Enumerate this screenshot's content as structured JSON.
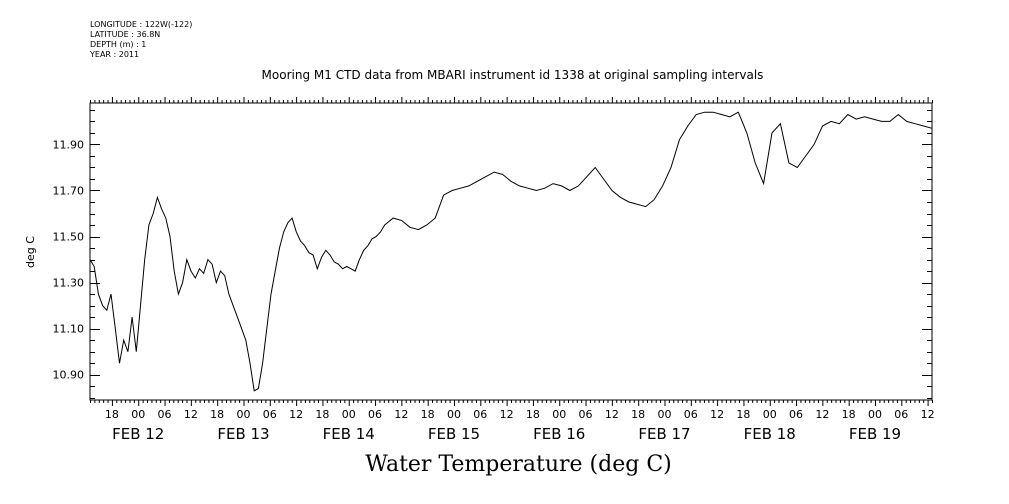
{
  "header": {
    "lines": [
      "LONGITUDE : 122W(-122)",
      "LATITUDE : 36.8N",
      "DEPTH (m) : 1",
      "YEAR : 2011"
    ]
  },
  "chart_data": {
    "type": "line",
    "title": "Mooring M1 CTD data from MBARI instrument id 1338 at original sampling intervals",
    "xlabel": "Water Temperature (deg C)",
    "ylabel": "deg C",
    "xlim": [
      "2011-02-11T13:00",
      "2011-02-19T13:00"
    ],
    "ylim": [
      10.79,
      12.08
    ],
    "yticks": [
      10.9,
      11.1,
      11.3,
      11.5,
      11.7,
      11.9
    ],
    "ytick_labels": [
      "10.90",
      "11.10",
      "11.30",
      "11.50",
      "11.70",
      "11.90"
    ],
    "hour_labels": [
      "18",
      "00",
      "06",
      "12",
      "18",
      "00",
      "06",
      "12",
      "18",
      "00",
      "06",
      "12",
      "18",
      "00",
      "06",
      "12",
      "18",
      "00",
      "06",
      "12",
      "18",
      "00",
      "06",
      "12",
      "18",
      "00",
      "06",
      "12",
      "18",
      "00",
      "06",
      "12"
    ],
    "date_labels": [
      "FEB 12",
      "FEB 13",
      "FEB 14",
      "FEB 15",
      "FEB 16",
      "FEB 17",
      "FEB 18",
      "FEB 19"
    ],
    "grid": false,
    "series": [
      {
        "x": [
          0,
          1,
          2,
          3,
          4,
          5,
          6,
          7,
          8,
          9,
          10,
          11,
          12,
          13,
          14,
          15,
          16,
          17,
          18,
          19,
          20,
          21,
          22,
          23,
          24,
          25,
          26,
          27,
          28,
          29,
          30,
          31,
          32,
          33,
          34,
          35,
          36,
          37,
          38,
          39,
          40,
          41,
          42,
          43,
          44,
          45,
          46,
          47,
          48,
          49,
          50,
          51,
          52,
          53,
          54,
          55,
          56,
          57,
          58,
          59,
          60,
          61,
          62,
          63,
          64,
          65,
          66,
          67,
          68,
          69,
          70,
          72,
          74,
          76,
          78,
          80,
          82,
          84,
          86,
          88,
          90,
          92,
          94,
          96,
          98,
          100,
          102,
          104,
          106,
          108,
          110,
          112,
          114,
          116,
          118,
          120,
          122,
          124,
          126,
          128,
          130,
          132,
          134,
          136,
          138,
          140,
          142,
          144,
          146,
          148,
          150,
          152,
          154,
          156,
          158,
          160,
          162,
          164,
          166,
          168,
          170,
          172,
          174,
          176,
          178,
          180,
          182,
          184,
          186,
          188,
          190,
          192,
          194,
          196,
          198,
          200
        ],
        "y": [
          11.4,
          11.37,
          11.25,
          11.2,
          11.18,
          11.25,
          11.1,
          10.95,
          11.05,
          11.0,
          11.15,
          11.0,
          11.2,
          11.4,
          11.55,
          11.6,
          11.67,
          11.62,
          11.58,
          11.5,
          11.35,
          11.25,
          11.3,
          11.4,
          11.35,
          11.32,
          11.36,
          11.34,
          11.4,
          11.38,
          11.3,
          11.35,
          11.33,
          11.25,
          11.2,
          11.15,
          11.1,
          11.05,
          10.95,
          10.83,
          10.84,
          10.95,
          11.1,
          11.25,
          11.35,
          11.45,
          11.52,
          11.56,
          11.58,
          11.52,
          11.48,
          11.46,
          11.43,
          11.42,
          11.36,
          11.41,
          11.44,
          11.42,
          11.39,
          11.38,
          11.36,
          11.37,
          11.36,
          11.35,
          11.4,
          11.44,
          11.46,
          11.49,
          11.5,
          11.52,
          11.55,
          11.58,
          11.57,
          11.54,
          11.53,
          11.55,
          11.58,
          11.68,
          11.7,
          11.71,
          11.72,
          11.74,
          11.76,
          11.78,
          11.77,
          11.74,
          11.72,
          11.71,
          11.7,
          11.71,
          11.73,
          11.72,
          11.7,
          11.72,
          11.76,
          11.8,
          11.75,
          11.7,
          11.67,
          11.65,
          11.64,
          11.63,
          11.66,
          11.72,
          11.8,
          11.92,
          11.98,
          12.03,
          12.04,
          12.04,
          12.03,
          12.02,
          12.04,
          11.95,
          11.82,
          11.73,
          11.95,
          11.99,
          11.82,
          11.8,
          11.85,
          11.9,
          11.98,
          12.0,
          11.99,
          12.03,
          12.01,
          12.02,
          12.01,
          12.0,
          12.0,
          12.03,
          12.0,
          11.99,
          11.98,
          11.97
        ]
      }
    ]
  }
}
